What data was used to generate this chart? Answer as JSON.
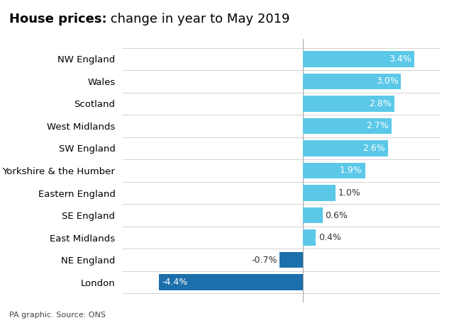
{
  "title_bold": "House prices:",
  "title_normal": " change in year to May 2019",
  "categories": [
    "London",
    "NE England",
    "East Midlands",
    "SE England",
    "Eastern England",
    "Yorkshire & the Humber",
    "SW England",
    "West Midlands",
    "Scotland",
    "Wales",
    "NW England"
  ],
  "values": [
    -4.4,
    -0.7,
    0.4,
    0.6,
    1.0,
    1.9,
    2.6,
    2.7,
    2.8,
    3.0,
    3.4
  ],
  "bar_color_positive": "#5bc8e8",
  "bar_color_negative": "#1b6faa",
  "background_color": "#ffffff",
  "grid_color": "#cccccc",
  "source_text": "PA graphic. Source: ONS",
  "xlim": [
    -5.5,
    4.2
  ],
  "inside_label_threshold": 1.5,
  "label_inside_color": "#ffffff",
  "label_outside_color": "#333333"
}
